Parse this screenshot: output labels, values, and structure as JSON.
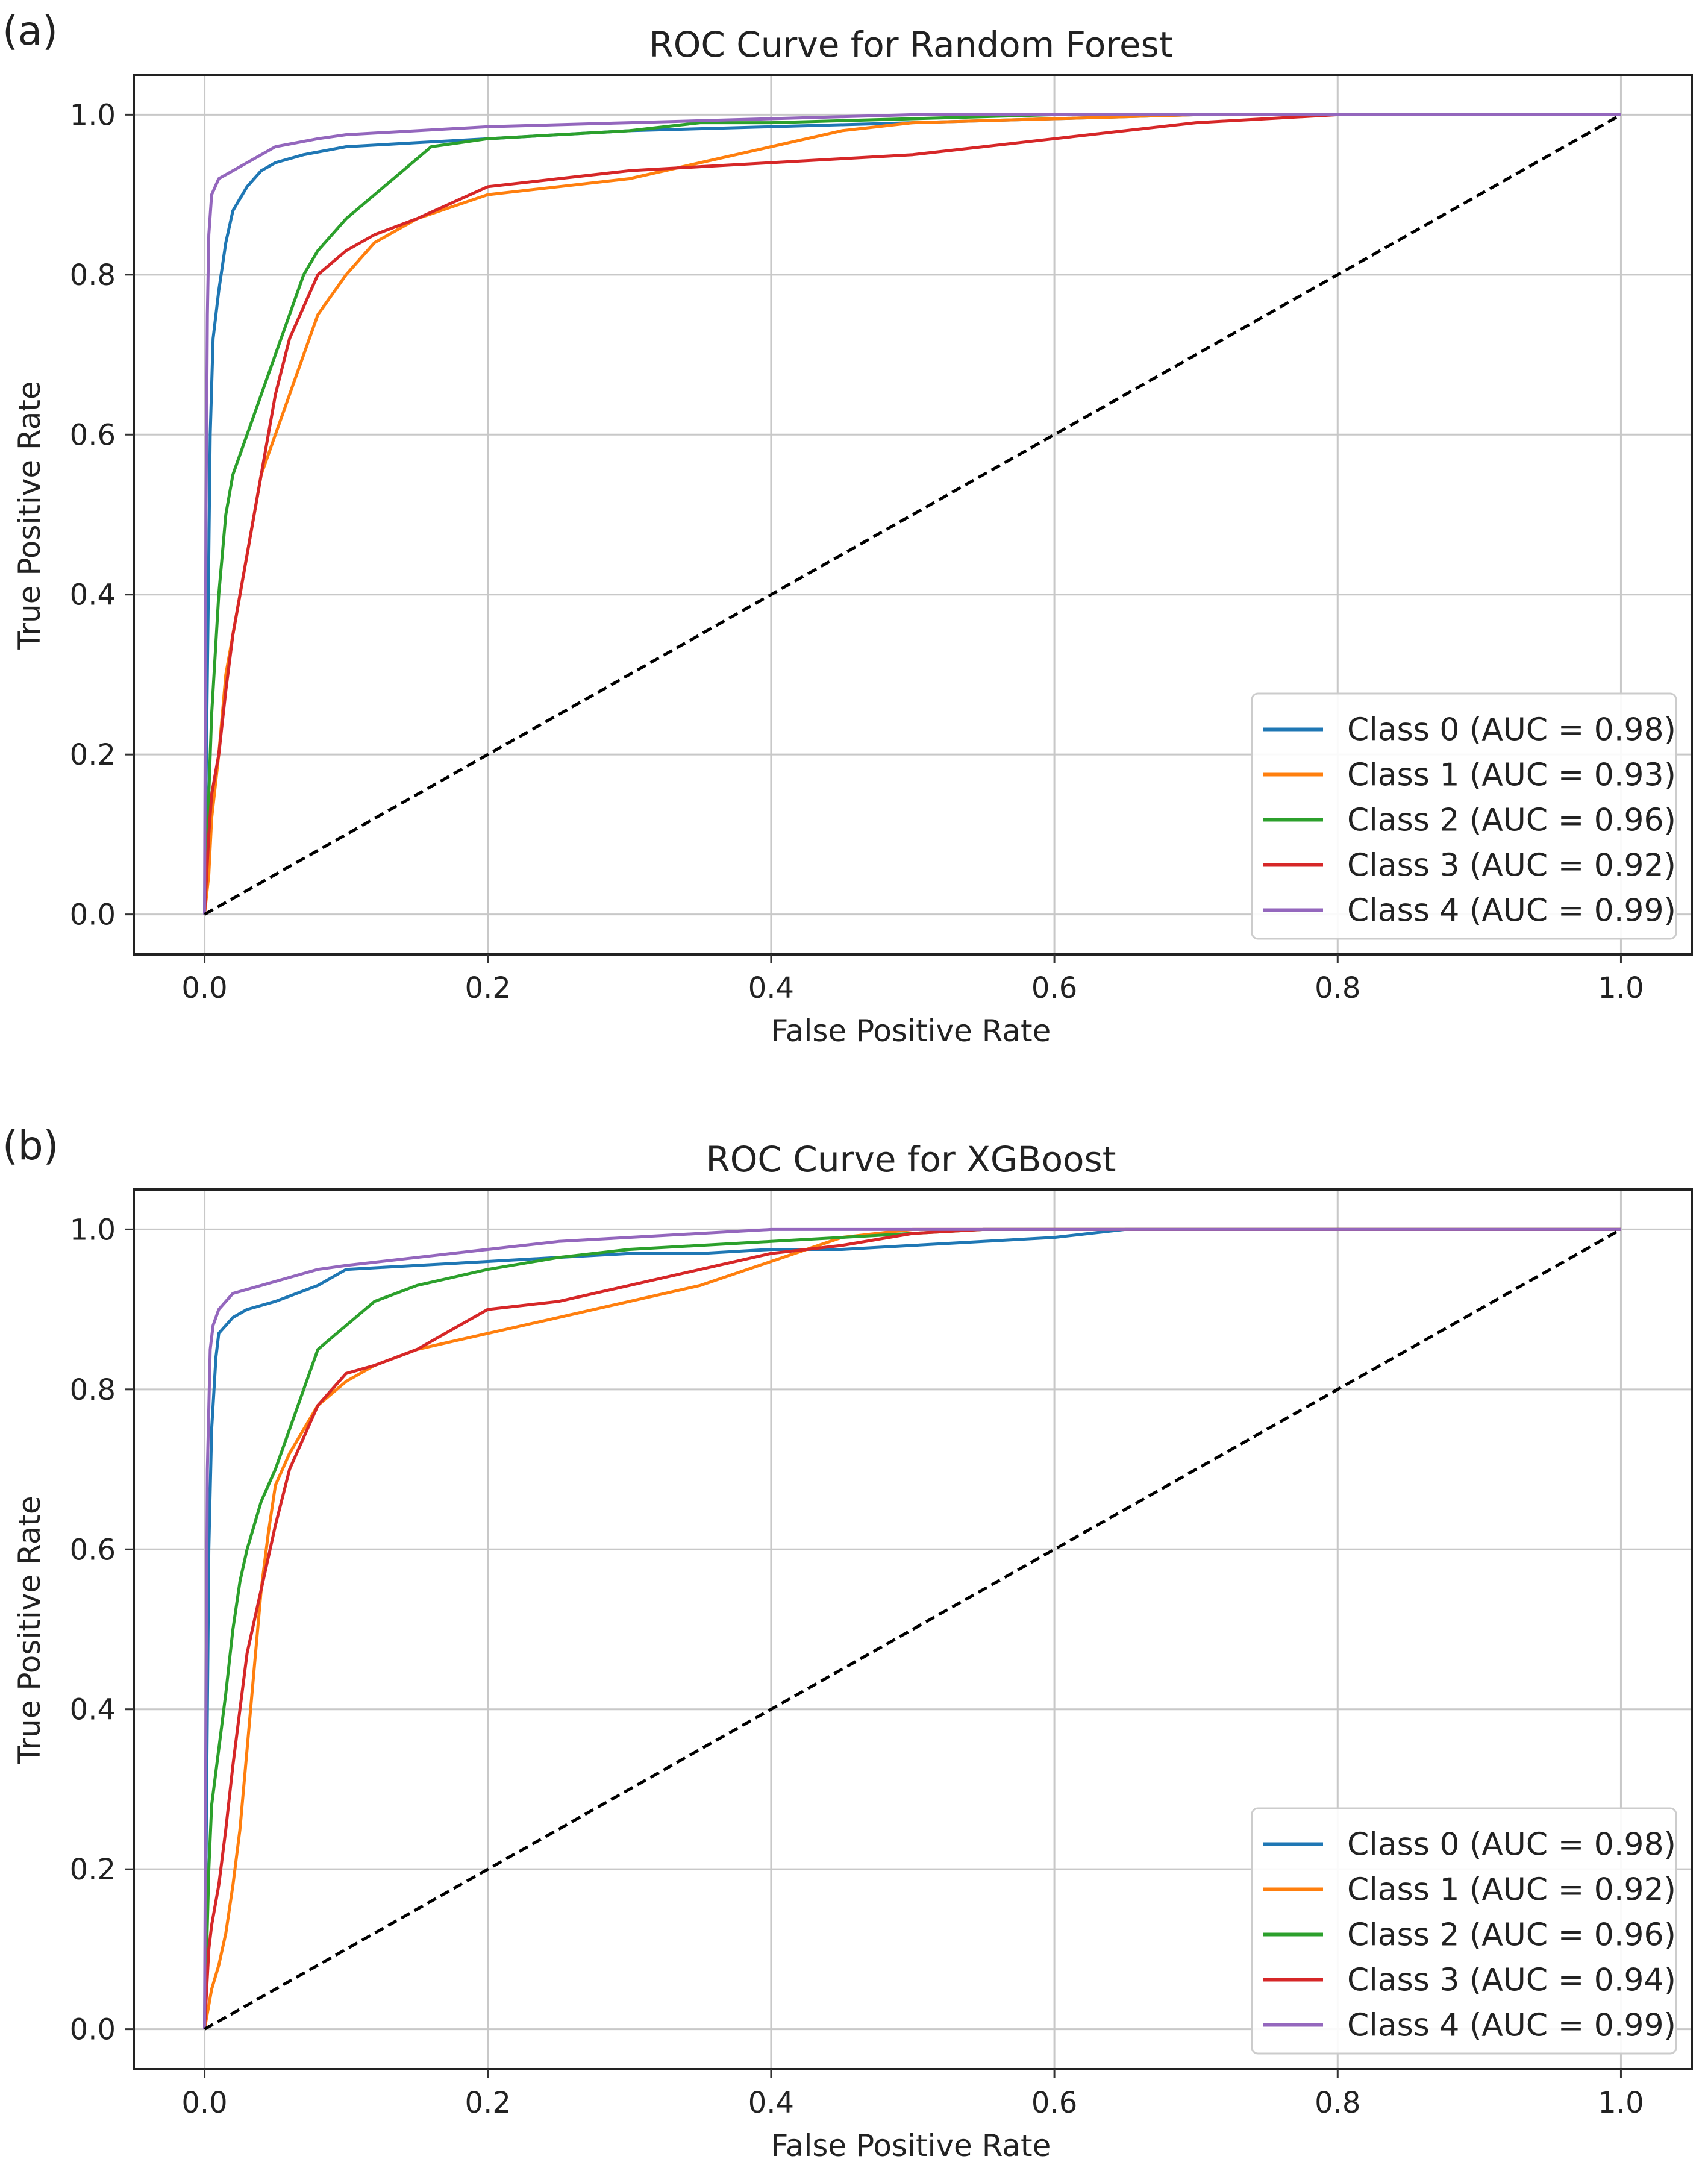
{
  "chart_data": [
    {
      "panel_label": "(a)",
      "type": "line",
      "title": "ROC Curve for Random Forest",
      "xlabel": "False Positive Rate",
      "ylabel": "True Positive Rate",
      "xlim": [
        -0.05,
        1.05
      ],
      "ylim": [
        -0.05,
        1.05
      ],
      "xticks": [
        "0.0",
        "0.2",
        "0.4",
        "0.6",
        "0.8",
        "1.0"
      ],
      "yticks": [
        "0.0",
        "0.2",
        "0.4",
        "0.6",
        "0.8",
        "1.0"
      ],
      "grid": true,
      "legend_position": "bottom-right",
      "series": [
        {
          "name": "Class 0 (AUC = 0.98)",
          "color": "#1f77b4",
          "points": [
            [
              0,
              0
            ],
            [
              0.002,
              0.3
            ],
            [
              0.004,
              0.6
            ],
            [
              0.006,
              0.72
            ],
            [
              0.01,
              0.78
            ],
            [
              0.015,
              0.84
            ],
            [
              0.02,
              0.88
            ],
            [
              0.03,
              0.91
            ],
            [
              0.04,
              0.93
            ],
            [
              0.05,
              0.94
            ],
            [
              0.07,
              0.95
            ],
            [
              0.1,
              0.96
            ],
            [
              0.15,
              0.965
            ],
            [
              0.2,
              0.97
            ],
            [
              0.25,
              0.975
            ],
            [
              0.3,
              0.98
            ],
            [
              0.4,
              0.985
            ],
            [
              0.5,
              0.99
            ],
            [
              0.6,
              0.995
            ],
            [
              0.7,
              1.0
            ],
            [
              1.0,
              1.0
            ]
          ]
        },
        {
          "name": "Class 1 (AUC = 0.93)",
          "color": "#ff7f0e",
          "points": [
            [
              0,
              0
            ],
            [
              0.003,
              0.05
            ],
            [
              0.005,
              0.12
            ],
            [
              0.01,
              0.2
            ],
            [
              0.015,
              0.3
            ],
            [
              0.02,
              0.35
            ],
            [
              0.03,
              0.45
            ],
            [
              0.04,
              0.55
            ],
            [
              0.05,
              0.6
            ],
            [
              0.06,
              0.65
            ],
            [
              0.07,
              0.7
            ],
            [
              0.08,
              0.75
            ],
            [
              0.1,
              0.8
            ],
            [
              0.12,
              0.84
            ],
            [
              0.15,
              0.87
            ],
            [
              0.2,
              0.9
            ],
            [
              0.25,
              0.91
            ],
            [
              0.3,
              0.92
            ],
            [
              0.35,
              0.94
            ],
            [
              0.4,
              0.96
            ],
            [
              0.45,
              0.98
            ],
            [
              0.5,
              0.99
            ],
            [
              0.6,
              0.995
            ],
            [
              0.7,
              1.0
            ],
            [
              1.0,
              1.0
            ]
          ]
        },
        {
          "name": "Class 2 (AUC = 0.96)",
          "color": "#2ca02c",
          "points": [
            [
              0,
              0
            ],
            [
              0.003,
              0.15
            ],
            [
              0.005,
              0.25
            ],
            [
              0.01,
              0.4
            ],
            [
              0.015,
              0.5
            ],
            [
              0.02,
              0.55
            ],
            [
              0.03,
              0.6
            ],
            [
              0.04,
              0.65
            ],
            [
              0.05,
              0.7
            ],
            [
              0.06,
              0.75
            ],
            [
              0.07,
              0.8
            ],
            [
              0.08,
              0.83
            ],
            [
              0.1,
              0.87
            ],
            [
              0.12,
              0.9
            ],
            [
              0.14,
              0.93
            ],
            [
              0.16,
              0.96
            ],
            [
              0.2,
              0.97
            ],
            [
              0.25,
              0.975
            ],
            [
              0.3,
              0.98
            ],
            [
              0.35,
              0.99
            ],
            [
              0.4,
              0.99
            ],
            [
              0.5,
              0.995
            ],
            [
              0.6,
              1.0
            ],
            [
              1.0,
              1.0
            ]
          ]
        },
        {
          "name": "Class 3 (AUC = 0.92)",
          "color": "#d62728",
          "points": [
            [
              0,
              0
            ],
            [
              0.003,
              0.1
            ],
            [
              0.005,
              0.15
            ],
            [
              0.01,
              0.2
            ],
            [
              0.015,
              0.28
            ],
            [
              0.02,
              0.35
            ],
            [
              0.03,
              0.45
            ],
            [
              0.04,
              0.55
            ],
            [
              0.05,
              0.65
            ],
            [
              0.06,
              0.72
            ],
            [
              0.08,
              0.8
            ],
            [
              0.1,
              0.83
            ],
            [
              0.12,
              0.85
            ],
            [
              0.15,
              0.87
            ],
            [
              0.2,
              0.91
            ],
            [
              0.25,
              0.92
            ],
            [
              0.3,
              0.93
            ],
            [
              0.35,
              0.935
            ],
            [
              0.4,
              0.94
            ],
            [
              0.45,
              0.945
            ],
            [
              0.5,
              0.95
            ],
            [
              0.55,
              0.96
            ],
            [
              0.6,
              0.97
            ],
            [
              0.65,
              0.98
            ],
            [
              0.7,
              0.99
            ],
            [
              0.8,
              1.0
            ],
            [
              1.0,
              1.0
            ]
          ]
        },
        {
          "name": "Class 4 (AUC = 0.99)",
          "color": "#9467bd",
          "points": [
            [
              0,
              0
            ],
            [
              0.001,
              0.5
            ],
            [
              0.002,
              0.75
            ],
            [
              0.003,
              0.85
            ],
            [
              0.005,
              0.9
            ],
            [
              0.01,
              0.92
            ],
            [
              0.02,
              0.93
            ],
            [
              0.03,
              0.94
            ],
            [
              0.05,
              0.96
            ],
            [
              0.08,
              0.97
            ],
            [
              0.1,
              0.975
            ],
            [
              0.15,
              0.98
            ],
            [
              0.2,
              0.985
            ],
            [
              0.3,
              0.99
            ],
            [
              0.4,
              0.995
            ],
            [
              0.5,
              1.0
            ],
            [
              1.0,
              1.0
            ]
          ]
        },
        {
          "name": "chance",
          "color": "#000000",
          "dashed": true,
          "legend": false,
          "points": [
            [
              0,
              0
            ],
            [
              1,
              1
            ]
          ]
        }
      ]
    },
    {
      "panel_label": "(b)",
      "type": "line",
      "title": "ROC Curve for XGBoost",
      "xlabel": "False Positive Rate",
      "ylabel": "True Positive Rate",
      "xlim": [
        -0.05,
        1.05
      ],
      "ylim": [
        -0.05,
        1.05
      ],
      "xticks": [
        "0.0",
        "0.2",
        "0.4",
        "0.6",
        "0.8",
        "1.0"
      ],
      "yticks": [
        "0.0",
        "0.2",
        "0.4",
        "0.6",
        "0.8",
        "1.0"
      ],
      "grid": true,
      "legend_position": "bottom-right",
      "series": [
        {
          "name": "Class 0 (AUC = 0.98)",
          "color": "#1f77b4",
          "points": [
            [
              0,
              0
            ],
            [
              0.002,
              0.4
            ],
            [
              0.003,
              0.6
            ],
            [
              0.005,
              0.75
            ],
            [
              0.008,
              0.84
            ],
            [
              0.01,
              0.87
            ],
            [
              0.02,
              0.89
            ],
            [
              0.03,
              0.9
            ],
            [
              0.05,
              0.91
            ],
            [
              0.08,
              0.93
            ],
            [
              0.1,
              0.95
            ],
            [
              0.15,
              0.955
            ],
            [
              0.2,
              0.96
            ],
            [
              0.25,
              0.965
            ],
            [
              0.3,
              0.97
            ],
            [
              0.35,
              0.97
            ],
            [
              0.4,
              0.975
            ],
            [
              0.45,
              0.975
            ],
            [
              0.5,
              0.98
            ],
            [
              0.55,
              0.985
            ],
            [
              0.6,
              0.99
            ],
            [
              0.65,
              1.0
            ],
            [
              1.0,
              1.0
            ]
          ]
        },
        {
          "name": "Class 1 (AUC = 0.92)",
          "color": "#ff7f0e",
          "points": [
            [
              0,
              0
            ],
            [
              0.005,
              0.05
            ],
            [
              0.01,
              0.08
            ],
            [
              0.015,
              0.12
            ],
            [
              0.02,
              0.18
            ],
            [
              0.025,
              0.25
            ],
            [
              0.03,
              0.35
            ],
            [
              0.035,
              0.45
            ],
            [
              0.04,
              0.55
            ],
            [
              0.045,
              0.62
            ],
            [
              0.05,
              0.68
            ],
            [
              0.06,
              0.72
            ],
            [
              0.07,
              0.75
            ],
            [
              0.08,
              0.78
            ],
            [
              0.1,
              0.81
            ],
            [
              0.12,
              0.83
            ],
            [
              0.15,
              0.85
            ],
            [
              0.2,
              0.87
            ],
            [
              0.25,
              0.89
            ],
            [
              0.3,
              0.91
            ],
            [
              0.35,
              0.93
            ],
            [
              0.4,
              0.96
            ],
            [
              0.45,
              0.99
            ],
            [
              0.5,
              1.0
            ],
            [
              1.0,
              1.0
            ]
          ]
        },
        {
          "name": "Class 2 (AUC = 0.96)",
          "color": "#2ca02c",
          "points": [
            [
              0,
              0
            ],
            [
              0.003,
              0.2
            ],
            [
              0.005,
              0.28
            ],
            [
              0.01,
              0.35
            ],
            [
              0.015,
              0.42
            ],
            [
              0.02,
              0.5
            ],
            [
              0.025,
              0.56
            ],
            [
              0.03,
              0.6
            ],
            [
              0.04,
              0.66
            ],
            [
              0.05,
              0.7
            ],
            [
              0.06,
              0.75
            ],
            [
              0.07,
              0.8
            ],
            [
              0.08,
              0.85
            ],
            [
              0.1,
              0.88
            ],
            [
              0.12,
              0.91
            ],
            [
              0.15,
              0.93
            ],
            [
              0.2,
              0.95
            ],
            [
              0.25,
              0.965
            ],
            [
              0.3,
              0.975
            ],
            [
              0.4,
              0.985
            ],
            [
              0.5,
              0.995
            ],
            [
              0.55,
              1.0
            ],
            [
              1.0,
              1.0
            ]
          ]
        },
        {
          "name": "Class 3 (AUC = 0.94)",
          "color": "#d62728",
          "points": [
            [
              0,
              0
            ],
            [
              0.003,
              0.1
            ],
            [
              0.005,
              0.13
            ],
            [
              0.01,
              0.18
            ],
            [
              0.015,
              0.25
            ],
            [
              0.02,
              0.33
            ],
            [
              0.025,
              0.4
            ],
            [
              0.03,
              0.47
            ],
            [
              0.04,
              0.55
            ],
            [
              0.05,
              0.63
            ],
            [
              0.06,
              0.7
            ],
            [
              0.07,
              0.74
            ],
            [
              0.08,
              0.78
            ],
            [
              0.1,
              0.82
            ],
            [
              0.12,
              0.83
            ],
            [
              0.15,
              0.85
            ],
            [
              0.18,
              0.88
            ],
            [
              0.2,
              0.9
            ],
            [
              0.25,
              0.91
            ],
            [
              0.3,
              0.93
            ],
            [
              0.35,
              0.95
            ],
            [
              0.4,
              0.97
            ],
            [
              0.45,
              0.98
            ],
            [
              0.5,
              0.995
            ],
            [
              0.55,
              1.0
            ],
            [
              1.0,
              1.0
            ]
          ]
        },
        {
          "name": "Class 4 (AUC = 0.99)",
          "color": "#9467bd",
          "points": [
            [
              0,
              0
            ],
            [
              0.001,
              0.4
            ],
            [
              0.002,
              0.7
            ],
            [
              0.004,
              0.85
            ],
            [
              0.006,
              0.88
            ],
            [
              0.01,
              0.9
            ],
            [
              0.02,
              0.92
            ],
            [
              0.04,
              0.93
            ],
            [
              0.06,
              0.94
            ],
            [
              0.08,
              0.95
            ],
            [
              0.1,
              0.955
            ],
            [
              0.15,
              0.965
            ],
            [
              0.2,
              0.975
            ],
            [
              0.25,
              0.985
            ],
            [
              0.3,
              0.99
            ],
            [
              0.35,
              0.995
            ],
            [
              0.4,
              1.0
            ],
            [
              1.0,
              1.0
            ]
          ]
        },
        {
          "name": "chance",
          "color": "#000000",
          "dashed": true,
          "legend": false,
          "points": [
            [
              0,
              0
            ],
            [
              1,
              1
            ]
          ]
        }
      ]
    }
  ]
}
